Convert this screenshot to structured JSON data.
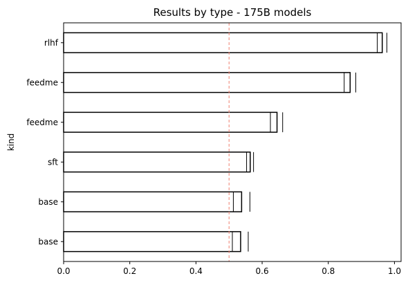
{
  "chart_data": {
    "type": "bar",
    "orientation": "horizontal",
    "title": "Results by type - 175B models",
    "xlabel": "",
    "ylabel": "kind",
    "xlim": [
      0.0,
      1.02
    ],
    "xticks": [
      "0.0",
      "0.2",
      "0.4",
      "0.6",
      "0.8",
      "1.0"
    ],
    "xtick_values": [
      0.0,
      0.2,
      0.4,
      0.6,
      0.8,
      1.0
    ],
    "categories": [
      "rlhf",
      "feedme",
      "feedme",
      "sft",
      "base",
      "base"
    ],
    "values": [
      0.963,
      0.866,
      0.645,
      0.564,
      0.538,
      0.535
    ],
    "interval_low": [
      0.948,
      0.848,
      0.625,
      0.553,
      0.513,
      0.51
    ],
    "interval_high": [
      0.977,
      0.883,
      0.662,
      0.574,
      0.563,
      0.558
    ],
    "reference_line": 0.5,
    "grid": false,
    "colors": {
      "bar_fill": "#ffffff",
      "bar_edge": "#000000",
      "reference_line": "#f08070"
    }
  }
}
